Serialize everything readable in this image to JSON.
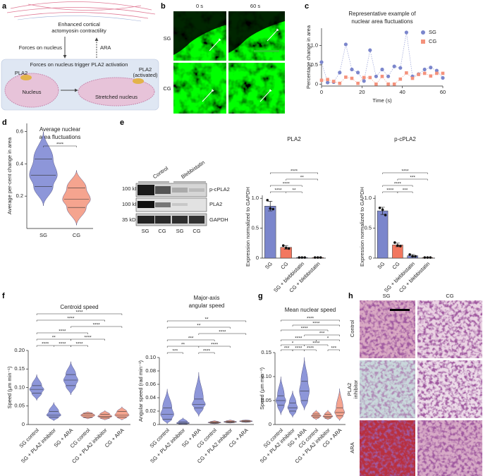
{
  "panel_labels": [
    "a",
    "b",
    "c",
    "d",
    "e",
    "f",
    "g",
    "h"
  ],
  "diagram": {
    "cortex_label": [
      "Enhanced cortical",
      "actomyosin contractility"
    ],
    "force_label": "Forces on nucleus",
    "ara_label": "ARA",
    "box_title": "Forces on nucleus trigger PLA2 activation",
    "pla2_label": "PLA2",
    "nucleus_label": "Nucleus",
    "activated_label": [
      "PLA2",
      "(activated)"
    ],
    "stretched_label": "Stretched nucleus"
  },
  "microscopy": {
    "times": [
      "0 s",
      "60 s"
    ],
    "conditions": [
      "SG",
      "CG"
    ]
  },
  "blot": {
    "groups": [
      "Control",
      "Blebbistatin"
    ],
    "markers": [
      "100 kDa",
      "100 kDa",
      "35 kDa"
    ],
    "proteins": [
      "p-cPLA2",
      "PLA2",
      "GAPDH"
    ],
    "lanes": [
      "SG",
      "CG",
      "SG",
      "CG"
    ]
  },
  "histology": {
    "columns": [
      "SG",
      "CG"
    ],
    "rows": [
      [
        "Control"
      ],
      [
        "PLA2",
        "inhibitor"
      ],
      [
        "ARA"
      ]
    ]
  },
  "chart_data": [
    {
      "type": "line",
      "title": [
        "Representative example of",
        "nuclear area fluctuations"
      ],
      "xlabel": "Time (s)",
      "ylabel": "Percentage change in area",
      "x": [
        0,
        3,
        6,
        9,
        12,
        15,
        18,
        21,
        24,
        27,
        30,
        33,
        36,
        39,
        42,
        45,
        48,
        51,
        54,
        57,
        60
      ],
      "series": [
        {
          "name": "SG",
          "color": "#7b86cc",
          "marker": "circle",
          "values": [
            0.57,
            0.04,
            0.05,
            0.3,
            1.03,
            0.38,
            0.3,
            0.08,
            0.88,
            0.2,
            0.38,
            0.2,
            0.46,
            0.42,
            1.34,
            0.2,
            0.26,
            0.38,
            0.43,
            0.35,
            0.16
          ]
        },
        {
          "name": "CG",
          "color": "#f4927c",
          "marker": "square",
          "values": [
            0.1,
            0.12,
            0.07,
            0.02,
            0.18,
            0.15,
            0.02,
            0.17,
            0.17,
            0.0,
            0.2,
            0.0,
            0.0,
            0.13,
            0.29,
            0.15,
            0.25,
            0.28,
            0.21,
            0.28,
            0.28
          ]
        }
      ],
      "xlim": [
        0,
        60
      ],
      "xticks": [
        0,
        20,
        40,
        60
      ],
      "ylim": [
        -0.05,
        1.45
      ],
      "yticks": [
        0,
        0.5,
        {
          "value": 1.0,
          "label": "1.0"
        }
      ],
      "legend": "top-right"
    },
    {
      "type": "violin",
      "title": [
        "Average nuclear",
        "area fluctuations"
      ],
      "ylabel": "Average per-cent change in area",
      "categories": [
        "SG",
        "CG"
      ],
      "colors": [
        "#8d96d9",
        "#f5a48f"
      ],
      "violins": [
        {
          "min": 0.14,
          "q1": 0.26,
          "median": 0.33,
          "q3": 0.43,
          "max": 0.6
        },
        {
          "min": 0.02,
          "q1": 0.13,
          "median": 0.18,
          "q3": 0.25,
          "max": 0.36
        }
      ],
      "ylim": [
        0,
        0.65
      ],
      "yticks": [
        0.2,
        0.4,
        0.6
      ],
      "significance": [
        {
          "label": "****",
          "between": [
            "SG",
            "CG"
          ]
        }
      ]
    },
    {
      "type": "bar",
      "title": "PLA2",
      "ylabel": "Expression normalized to GAPDH",
      "categories": [
        "SG",
        "CG",
        "SG + blebbistatin",
        "CG + blebbistatin"
      ],
      "colors": [
        "#7b86cc",
        "#f2775f",
        "#7b86cc",
        "#f2775f"
      ],
      "values": [
        0.87,
        0.18,
        0.01,
        0.01
      ],
      "errors": [
        0.08,
        0.03,
        0,
        0
      ],
      "points": [
        [
          0.97,
          0.83,
          0.82
        ],
        [
          0.21,
          0.17,
          0.16
        ],
        [
          0.01,
          0.01,
          0.01
        ],
        [
          0.01,
          0.01,
          0.01
        ]
      ],
      "ylim": [
        0,
        1.05
      ],
      "yticks": [
        0,
        0.5,
        {
          "value": 1.0,
          "label": "1.0"
        }
      ],
      "significance": [
        {
          "label": "****",
          "between": [
            "SG",
            "CG"
          ]
        },
        {
          "label": "**",
          "between": [
            "CG",
            "SG + blebbistatin"
          ]
        },
        {
          "label": "****",
          "between": [
            "SG",
            "SG + blebbistatin"
          ]
        },
        {
          "label": "**",
          "between": [
            "CG",
            "CG + blebbistatin"
          ]
        },
        {
          "label": "****",
          "between": [
            "SG",
            "CG + blebbistatin"
          ]
        }
      ]
    },
    {
      "type": "bar",
      "title": "p-cPLA2",
      "ylabel": "Expression normalized to GAPDH",
      "categories": [
        "SG",
        "CG",
        "SG + blebbistatin",
        "CG + blebbistatin"
      ],
      "colors": [
        "#7b86cc",
        "#f2775f",
        "#7b86cc",
        "#f2775f"
      ],
      "values": [
        0.79,
        0.22,
        0.04,
        0.01
      ],
      "errors": [
        0.06,
        0.03,
        0.02,
        0
      ],
      "points": [
        [
          0.84,
          0.81,
          0.72
        ],
        [
          0.26,
          0.21,
          0.2
        ],
        [
          0.06,
          0.03,
          0.03
        ],
        [
          0.01,
          0.01,
          0.01
        ]
      ],
      "ylim": [
        0,
        1.05
      ],
      "yticks": [
        0,
        0.5,
        {
          "value": 1.0,
          "label": "1.0"
        }
      ],
      "significance": [
        {
          "label": "****",
          "between": [
            "SG",
            "CG"
          ]
        },
        {
          "label": "***",
          "between": [
            "CG",
            "SG + blebbistatin"
          ]
        },
        {
          "label": "****",
          "between": [
            "SG",
            "SG + blebbistatin"
          ]
        },
        {
          "label": "***",
          "between": [
            "CG",
            "CG + blebbistatin"
          ]
        },
        {
          "label": "****",
          "between": [
            "SG",
            "CG + blebbistatin"
          ]
        }
      ]
    },
    {
      "type": "violin",
      "title": "Centroid speed",
      "ylabel": "Speed (μm min⁻¹)",
      "categories": [
        "SG control",
        "SG + PLA2 inhibitor",
        "SG + ARA",
        "CG control",
        "CG + PLA2 inhibitor",
        "CG + ARA"
      ],
      "colors": [
        "#8d96d9",
        "#8d96d9",
        "#8d96d9",
        "#f5a48f",
        "#f5a48f",
        "#f5a48f"
      ],
      "violins": [
        {
          "min": 0.065,
          "q1": 0.085,
          "median": 0.095,
          "q3": 0.105,
          "max": 0.135
        },
        {
          "min": 0.01,
          "q1": 0.02,
          "median": 0.025,
          "q3": 0.035,
          "max": 0.06
        },
        {
          "min": 0.08,
          "q1": 0.105,
          "median": 0.12,
          "q3": 0.135,
          "max": 0.17
        },
        {
          "min": 0.015,
          "q1": 0.02,
          "median": 0.025,
          "q3": 0.03,
          "max": 0.035
        },
        {
          "min": 0.012,
          "q1": 0.018,
          "median": 0.022,
          "q3": 0.028,
          "max": 0.038
        },
        {
          "min": 0.012,
          "q1": 0.02,
          "median": 0.025,
          "q3": 0.035,
          "max": 0.048
        }
      ],
      "ylim": [
        0,
        0.2
      ],
      "yticks": [
        0,
        0.05,
        {
          "value": 0.1,
          "label": "0.10"
        },
        0.15,
        {
          "value": 0.2,
          "label": "0.20"
        }
      ],
      "significance": [
        {
          "label": "****",
          "between": [
            "SG control",
            "SG + PLA2 inhibitor"
          ]
        },
        {
          "label": "****",
          "between": [
            "SG + PLA2 inhibitor",
            "SG + ARA"
          ]
        },
        {
          "label": "****",
          "between": [
            "SG + ARA",
            "CG control"
          ]
        },
        {
          "label": "**",
          "between": [
            "SG control",
            "SG + ARA"
          ]
        },
        {
          "label": "****",
          "between": [
            "SG + ARA",
            "CG + PLA2 inhibitor"
          ]
        },
        {
          "label": "****",
          "between": [
            "SG control",
            "CG control"
          ]
        },
        {
          "label": "****",
          "between": [
            "SG + ARA",
            "CG + ARA"
          ]
        },
        {
          "label": "****",
          "between": [
            "SG control",
            "CG + PLA2 inhibitor"
          ]
        },
        {
          "label": "****",
          "between": [
            "SG control",
            "CG + ARA"
          ]
        }
      ]
    },
    {
      "type": "violin",
      "title": [
        "Major-axis",
        "angular speed"
      ],
      "ylabel": "Angular speed (rad min⁻¹)",
      "categories": [
        "SG control",
        "SG + PLA2 inhibitor",
        "SG + ARA",
        "CG control",
        "CG + PLA2 inhibitor",
        "CG + ARA"
      ],
      "colors": [
        "#8d96d9",
        "#8d96d9",
        "#8d96d9",
        "#f5a48f",
        "#f5a48f",
        "#f5a48f"
      ],
      "violins": [
        {
          "min": 0.001,
          "q1": 0.008,
          "median": 0.015,
          "q3": 0.025,
          "max": 0.053
        },
        {
          "min": 0.0,
          "q1": 0.001,
          "median": 0.002,
          "q3": 0.004,
          "max": 0.01
        },
        {
          "min": 0.012,
          "q1": 0.025,
          "median": 0.03,
          "q3": 0.038,
          "max": 0.078
        },
        {
          "min": 0.001,
          "q1": 0.002,
          "median": 0.003,
          "q3": 0.004,
          "max": 0.006
        },
        {
          "min": 0.002,
          "q1": 0.003,
          "median": 0.004,
          "q3": 0.005,
          "max": 0.007
        },
        {
          "min": 0.003,
          "q1": 0.004,
          "median": 0.005,
          "q3": 0.006,
          "max": 0.007
        }
      ],
      "ylim": [
        0,
        0.1
      ],
      "yticks": [
        0,
        0.02,
        0.04,
        0.06,
        0.08,
        {
          "value": 0.1,
          "label": "0.10"
        }
      ],
      "significance": [
        {
          "label": "***",
          "between": [
            "SG control",
            "SG + PLA2 inhibitor"
          ]
        },
        {
          "label": "****",
          "between": [
            "SG + ARA",
            "CG control"
          ]
        },
        {
          "label": "**",
          "between": [
            "SG control",
            "SG + ARA"
          ]
        },
        {
          "label": "****",
          "between": [
            "SG + ARA",
            "CG + PLA2 inhibitor"
          ]
        },
        {
          "label": "***",
          "between": [
            "SG control",
            "CG control"
          ]
        },
        {
          "label": "****",
          "between": [
            "SG + ARA",
            "CG + ARA"
          ]
        },
        {
          "label": "**",
          "between": [
            "SG control",
            "CG + PLA2 inhibitor"
          ]
        },
        {
          "label": "**",
          "between": [
            "SG control",
            "CG + ARA"
          ]
        }
      ]
    },
    {
      "type": "violin",
      "title": "Mean nuclear speed",
      "ylabel": "Speed (μm min⁻¹)",
      "categories": [
        "SG control",
        "SG + PLA2 inhibitor",
        "SG + ARA",
        "CG control",
        "CG + PLA2 inhibitor",
        "CG + ARA"
      ],
      "colors": [
        "#8d96d9",
        "#8d96d9",
        "#8d96d9",
        "#f5a48f",
        "#f5a48f",
        "#f5a48f"
      ],
      "violins": [
        {
          "min": 0.02,
          "q1": 0.04,
          "median": 0.05,
          "q3": 0.06,
          "max": 0.1
        },
        {
          "min": 0.015,
          "q1": 0.028,
          "median": 0.035,
          "q3": 0.045,
          "max": 0.07
        },
        {
          "min": 0.03,
          "q1": 0.05,
          "median": 0.07,
          "q3": 0.09,
          "max": 0.14
        },
        {
          "min": 0.01,
          "q1": 0.015,
          "median": 0.018,
          "q3": 0.022,
          "max": 0.03
        },
        {
          "min": 0.01,
          "q1": 0.014,
          "median": 0.017,
          "q3": 0.021,
          "max": 0.03
        },
        {
          "min": 0.008,
          "q1": 0.018,
          "median": 0.025,
          "q3": 0.035,
          "max": 0.075
        }
      ],
      "ylim": [
        0,
        0.15
      ],
      "yticks": [
        0,
        0.05,
        {
          "value": 0.1,
          "label": "0.10"
        },
        0.15
      ],
      "significance": [
        {
          "label": "***",
          "between": [
            "SG control",
            "SG + PLA2 inhibitor"
          ]
        },
        {
          "label": "****",
          "between": [
            "SG + PLA2 inhibitor",
            "SG + ARA"
          ]
        },
        {
          "label": "****",
          "between": [
            "SG + ARA",
            "CG control"
          ]
        },
        {
          "label": "***",
          "between": [
            "CG + PLA2 inhibitor",
            "CG + ARA"
          ]
        },
        {
          "label": "*",
          "between": [
            "SG control",
            "SG + ARA"
          ]
        },
        {
          "label": "****",
          "between": [
            "SG + ARA",
            "CG + PLA2 inhibitor"
          ]
        },
        {
          "label": "*",
          "between": [
            "CG control",
            "CG + ARA"
          ]
        },
        {
          "label": "****",
          "between": [
            "SG control",
            "CG control"
          ]
        },
        {
          "label": "***",
          "between": [
            "SG + ARA",
            "CG + ARA"
          ]
        },
        {
          "label": "****",
          "between": [
            "SG control",
            "CG + PLA2 inhibitor"
          ]
        },
        {
          "label": "****",
          "between": [
            "SG + PLA2 inhibitor",
            "CG + ARA"
          ]
        },
        {
          "label": "****",
          "between": [
            "SG control",
            "CG + ARA"
          ]
        }
      ]
    }
  ]
}
